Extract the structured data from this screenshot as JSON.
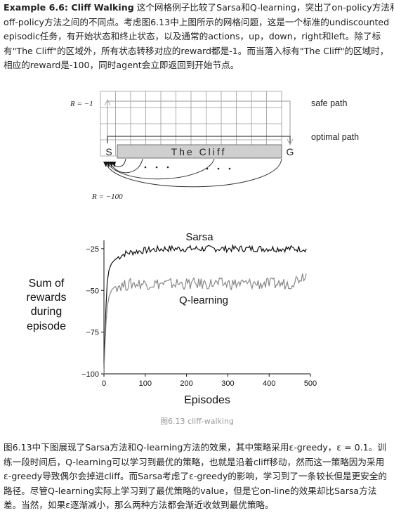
{
  "intro": {
    "example_label": "Example 6.6: Cliff Walking",
    "line1_rest": " 这个网格例子比较了Sarsa和Q-learning，突出了on-policy方法和",
    "line2": "off-policy方法之间的不同点。考虑图6.13中上图所示的网格问题，这是一个标准的undiscounted",
    "line3": "episodic任务，有开始状态和终止状态，以及通常的actions，up，down，right和left。除了标",
    "line4": "有\"The Cliff\"的区域外，所有状态转移对应的reward都是-1。而当落入标有\"The Cliff\"的区域时，",
    "line5": "相应的reward是-100，同时agent会立即返回到开始节点。"
  },
  "gridworld": {
    "reward_step": "R = −1",
    "reward_cliff": "R = −100",
    "start": "S",
    "goal": "G",
    "cliff": "The  Cliff",
    "safe_path": "safe path",
    "optimal_path": "optimal path",
    "cols": 12,
    "rows": 4
  },
  "chart_data": {
    "type": "line",
    "title": "",
    "xlabel": "Episodes",
    "ylabel": "Sum of rewards during episode",
    "xlim": [
      0,
      500
    ],
    "ylim": [
      -100,
      -20
    ],
    "xticks": [
      "0",
      "100",
      "200",
      "300",
      "400",
      "500"
    ],
    "yticks": [
      "−25",
      "−50",
      "−75",
      "−100"
    ],
    "x": [
      0,
      2,
      5,
      8,
      12,
      18,
      25,
      35,
      50,
      70,
      100,
      150,
      200,
      250,
      300,
      350,
      400,
      450,
      490
    ],
    "series": [
      {
        "name": "Sarsa",
        "color": "#111111",
        "values": [
          -100,
          -80,
          -60,
          -45,
          -38,
          -34,
          -32,
          -30,
          -28,
          -27,
          -26,
          -25,
          -25,
          -25,
          -25,
          -25,
          -25,
          -25,
          -25
        ]
      },
      {
        "name": "Q-learning",
        "color": "#888888",
        "values": [
          -100,
          -85,
          -70,
          -60,
          -54,
          -50,
          -48,
          -47,
          -47,
          -46,
          -46,
          -46,
          -46,
          -46,
          -46,
          -46,
          -46,
          -46,
          -40
        ]
      }
    ]
  },
  "caption": "图6.13 cliff-walking",
  "outro": {
    "line1": "图6.13中下图展现了Sarsa方法和Q-learning方法的效果，其中策略采用ε-greedy，ε = 0.1。训",
    "line2": "练一段时间后，Q-learning可以学习到最优的策略，也就是沿着cliff移动，然而这一策略因为采用",
    "line3": "ε-greedy导致偶尔会掉进cliff。而Sarsa考虑了ε-greedy的影响，学习到了一条较长但是更安全的",
    "line4": "路径。尽管Q-learning实际上学习到了最优策略的value，但是它on-line的效果却比Sarsa方法",
    "line5": "差。当然，如果ε逐渐减小，那么两种方法都会渐近收敛到最优策略。"
  }
}
